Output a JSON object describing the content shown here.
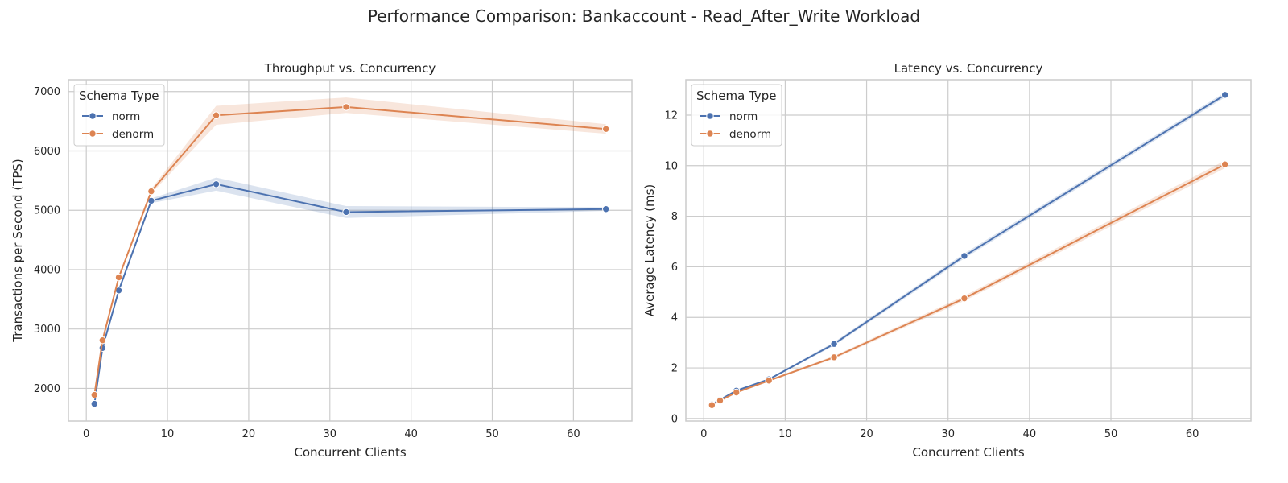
{
  "suptitle": "Performance Comparison: Bankaccount - Read_After_Write Workload",
  "colors": {
    "norm": "#4c72b0",
    "denorm": "#dd8452",
    "grid": "#cccccc",
    "spine": "#cccccc"
  },
  "chart_data": [
    {
      "type": "line",
      "title": "Throughput vs. Concurrency",
      "xlabel": "Concurrent Clients",
      "ylabel": "Transactions per Second (TPS)",
      "xlim": [
        -2.2,
        67.2
      ],
      "ylim": [
        1450,
        7200
      ],
      "xticks": [
        0,
        10,
        20,
        30,
        40,
        50,
        60
      ],
      "yticks": [
        2000,
        3000,
        4000,
        5000,
        6000,
        7000
      ],
      "grid": true,
      "legend": {
        "title": "Schema Type",
        "position": "top-left"
      },
      "x": [
        1,
        2,
        4,
        8,
        16,
        32,
        64
      ],
      "series": [
        {
          "name": "norm",
          "color": "#4c72b0",
          "values": [
            1740,
            2680,
            3650,
            5160,
            5440,
            4970,
            5020
          ],
          "ci_low": [
            1700,
            2640,
            3610,
            5120,
            5330,
            4870,
            4990
          ],
          "ci_high": [
            1780,
            2720,
            3690,
            5200,
            5550,
            5070,
            5050
          ]
        },
        {
          "name": "denorm",
          "color": "#dd8452",
          "values": [
            1890,
            2810,
            3870,
            5320,
            6600,
            6740,
            6370
          ],
          "ci_low": [
            1860,
            2780,
            3840,
            5280,
            6440,
            6640,
            6290
          ],
          "ci_high": [
            1920,
            2840,
            3900,
            5360,
            6760,
            6900,
            6450
          ]
        }
      ]
    },
    {
      "type": "line",
      "title": "Latency vs. Concurrency",
      "xlabel": "Concurrent Clients",
      "ylabel": "Average Latency (ms)",
      "xlim": [
        -2.2,
        67.2
      ],
      "ylim": [
        -0.1,
        13.4
      ],
      "xticks": [
        0,
        10,
        20,
        30,
        40,
        50,
        60
      ],
      "yticks": [
        0,
        2,
        4,
        6,
        8,
        10,
        12
      ],
      "grid": true,
      "legend": {
        "title": "Schema Type",
        "position": "top-left"
      },
      "x": [
        1,
        2,
        4,
        8,
        16,
        32,
        64
      ],
      "series": [
        {
          "name": "norm",
          "color": "#4c72b0",
          "values": [
            0.56,
            0.74,
            1.1,
            1.55,
            2.95,
            6.43,
            12.8
          ],
          "ci_low": [
            0.53,
            0.71,
            1.06,
            1.52,
            2.88,
            6.33,
            12.7
          ],
          "ci_high": [
            0.59,
            0.77,
            1.14,
            1.58,
            3.02,
            6.53,
            12.9
          ]
        },
        {
          "name": "denorm",
          "color": "#dd8452",
          "values": [
            0.53,
            0.71,
            1.03,
            1.5,
            2.42,
            4.75,
            10.05
          ],
          "ci_low": [
            0.51,
            0.69,
            1.0,
            1.47,
            2.36,
            4.65,
            9.9
          ],
          "ci_high": [
            0.55,
            0.73,
            1.06,
            1.53,
            2.48,
            4.85,
            10.2
          ]
        }
      ]
    }
  ]
}
